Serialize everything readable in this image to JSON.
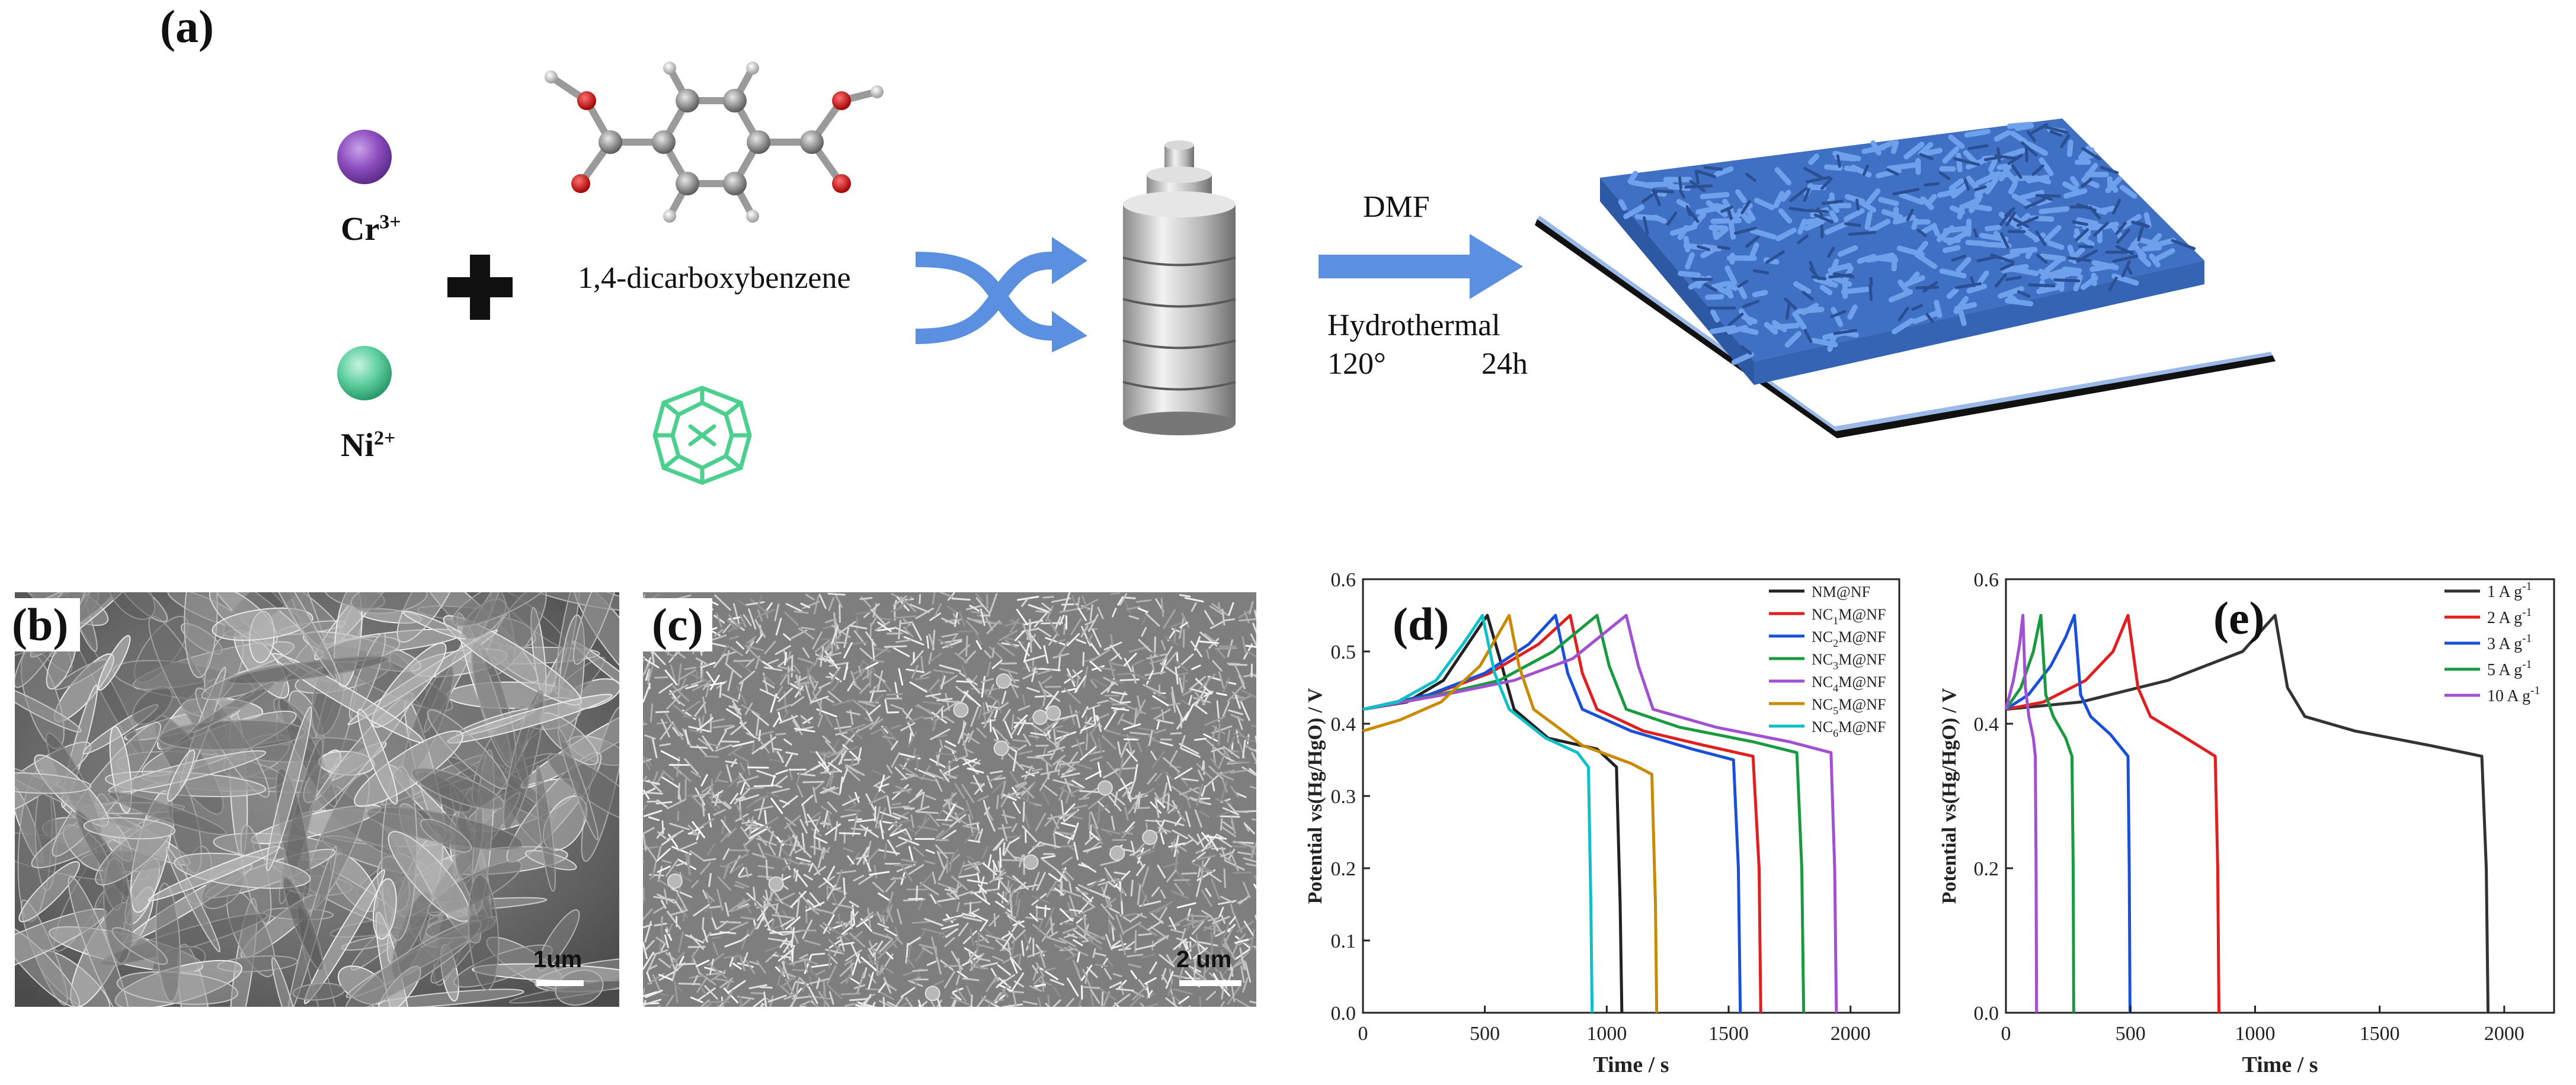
{
  "panel_a": {
    "label": "(a)",
    "cr_ion": "Cr",
    "cr_charge": "3+",
    "ni_ion": "Ni",
    "ni_charge": "2+",
    "molecule_name": "1,4-dicarboxybenzene",
    "solvent": "DMF",
    "method": "Hydrothermal",
    "temperature": "120°",
    "duration": "24h",
    "colors": {
      "cr": "#8e4fc0",
      "ni": "#5fd0a0",
      "arrow": "#5b8fe0",
      "mof": "#4a7fd0"
    }
  },
  "panel_b": {
    "label": "(b)",
    "scale": "1um"
  },
  "panel_c": {
    "label": "(c)",
    "scale": "2 um"
  },
  "chart_data": [
    {
      "panel": "(d)",
      "type": "line",
      "xlabel": "Time / s",
      "ylabel": "Potential vs(Hg/HgO) / V",
      "xlim": [
        0,
        2200
      ],
      "ylim": [
        0,
        0.6
      ],
      "xticks": [
        0,
        500,
        1000,
        1500,
        2000
      ],
      "yticks": [
        0.0,
        0.1,
        0.2,
        0.3,
        0.4,
        0.5,
        0.6
      ],
      "legend_position": "top-right",
      "series": [
        {
          "name": "NM@NF",
          "sub": "",
          "color": "#222222",
          "points": [
            [
              0,
              0.42
            ],
            [
              180,
              0.43
            ],
            [
              330,
              0.46
            ],
            [
              430,
              0.51
            ],
            [
              510,
              0.55
            ],
            [
              570,
              0.48
            ],
            [
              620,
              0.42
            ],
            [
              760,
              0.38
            ],
            [
              960,
              0.365
            ],
            [
              1040,
              0.34
            ],
            [
              1055,
              0.15
            ],
            [
              1062,
              0
            ]
          ]
        },
        {
          "name": "NC",
          "sub": "1",
          "name_rest": "M@NF",
          "color": "#e02020",
          "points": [
            [
              0,
              0.42
            ],
            [
              280,
              0.44
            ],
            [
              520,
              0.47
            ],
            [
              720,
              0.51
            ],
            [
              850,
              0.55
            ],
            [
              900,
              0.47
            ],
            [
              960,
              0.42
            ],
            [
              1150,
              0.39
            ],
            [
              1400,
              0.37
            ],
            [
              1600,
              0.355
            ],
            [
              1625,
              0.2
            ],
            [
              1632,
              0
            ]
          ]
        },
        {
          "name": "NC",
          "sub": "2",
          "name_rest": "M@NF",
          "color": "#1a50d8",
          "points": [
            [
              0,
              0.42
            ],
            [
              270,
              0.44
            ],
            [
              500,
              0.47
            ],
            [
              680,
              0.51
            ],
            [
              790,
              0.55
            ],
            [
              840,
              0.47
            ],
            [
              900,
              0.42
            ],
            [
              1100,
              0.39
            ],
            [
              1350,
              0.365
            ],
            [
              1520,
              0.35
            ],
            [
              1540,
              0.2
            ],
            [
              1548,
              0
            ]
          ]
        },
        {
          "name": "NC",
          "sub": "3",
          "name_rest": "M@NF",
          "color": "#1a9a40",
          "points": [
            [
              0,
              0.42
            ],
            [
              310,
              0.44
            ],
            [
              560,
              0.46
            ],
            [
              780,
              0.5
            ],
            [
              960,
              0.55
            ],
            [
              1010,
              0.48
            ],
            [
              1080,
              0.42
            ],
            [
              1300,
              0.395
            ],
            [
              1600,
              0.375
            ],
            [
              1780,
              0.36
            ],
            [
              1800,
              0.2
            ],
            [
              1808,
              0
            ]
          ]
        },
        {
          "name": "NC",
          "sub": "4",
          "name_rest": "M@NF",
          "color": "#a050d0",
          "points": [
            [
              0,
              0.42
            ],
            [
              330,
              0.44
            ],
            [
              620,
              0.46
            ],
            [
              860,
              0.49
            ],
            [
              1080,
              0.55
            ],
            [
              1130,
              0.48
            ],
            [
              1190,
              0.42
            ],
            [
              1450,
              0.395
            ],
            [
              1750,
              0.375
            ],
            [
              1920,
              0.36
            ],
            [
              1935,
              0.2
            ],
            [
              1942,
              0
            ]
          ]
        },
        {
          "name": "NC",
          "sub": "5",
          "name_rest": "M@NF",
          "color": "#c88a00",
          "points": [
            [
              0,
              0.39
            ],
            [
              150,
              0.405
            ],
            [
              320,
              0.43
            ],
            [
              480,
              0.48
            ],
            [
              600,
              0.55
            ],
            [
              640,
              0.48
            ],
            [
              700,
              0.42
            ],
            [
              900,
              0.37
            ],
            [
              1100,
              0.345
            ],
            [
              1185,
              0.33
            ],
            [
              1200,
              0.15
            ],
            [
              1205,
              0
            ]
          ]
        },
        {
          "name": "NC",
          "sub": "6",
          "name_rest": "M@NF",
          "color": "#10c0c8",
          "points": [
            [
              0,
              0.42
            ],
            [
              140,
              0.43
            ],
            [
              300,
              0.46
            ],
            [
              410,
              0.51
            ],
            [
              490,
              0.55
            ],
            [
              540,
              0.47
            ],
            [
              600,
              0.42
            ],
            [
              750,
              0.38
            ],
            [
              880,
              0.36
            ],
            [
              925,
              0.34
            ],
            [
              935,
              0.15
            ],
            [
              940,
              0
            ]
          ]
        }
      ]
    },
    {
      "panel": "(e)",
      "type": "line",
      "xlabel": "Time / s",
      "ylabel": "Potential vs(Hg/HgO) / V",
      "xlim": [
        0,
        2200
      ],
      "ylim": [
        0,
        0.6
      ],
      "xticks": [
        0,
        500,
        1000,
        1500,
        2000
      ],
      "yticks": [
        0.0,
        0.2,
        0.4,
        0.6
      ],
      "legend_position": "top-right",
      "series": [
        {
          "name": "1 A g",
          "sup": "-1",
          "color": "#333333",
          "points": [
            [
              0,
              0.42
            ],
            [
              300,
              0.43
            ],
            [
              650,
              0.46
            ],
            [
              950,
              0.5
            ],
            [
              1080,
              0.55
            ],
            [
              1130,
              0.45
            ],
            [
              1200,
              0.41
            ],
            [
              1400,
              0.39
            ],
            [
              1700,
              0.37
            ],
            [
              1910,
              0.355
            ],
            [
              1928,
              0.2
            ],
            [
              1935,
              0
            ]
          ]
        },
        {
          "name": "2 A g",
          "sup": "-1",
          "color": "#e02020",
          "points": [
            [
              0,
              0.42
            ],
            [
              150,
              0.43
            ],
            [
              320,
              0.46
            ],
            [
              430,
              0.5
            ],
            [
              490,
              0.55
            ],
            [
              530,
              0.45
            ],
            [
              580,
              0.41
            ],
            [
              700,
              0.385
            ],
            [
              840,
              0.355
            ],
            [
              850,
              0.2
            ],
            [
              855,
              0
            ]
          ]
        },
        {
          "name": "3 A g",
          "sup": "-1",
          "color": "#1a50d8",
          "points": [
            [
              0,
              0.42
            ],
            [
              90,
              0.44
            ],
            [
              180,
              0.48
            ],
            [
              240,
              0.52
            ],
            [
              275,
              0.55
            ],
            [
              300,
              0.44
            ],
            [
              340,
              0.41
            ],
            [
              420,
              0.385
            ],
            [
              490,
              0.355
            ],
            [
              495,
              0.2
            ],
            [
              498,
              0
            ]
          ]
        },
        {
          "name": "5 A g",
          "sup": "-1",
          "color": "#1a9a40",
          "points": [
            [
              0,
              0.42
            ],
            [
              60,
              0.45
            ],
            [
              110,
              0.5
            ],
            [
              140,
              0.55
            ],
            [
              160,
              0.44
            ],
            [
              190,
              0.41
            ],
            [
              240,
              0.38
            ],
            [
              265,
              0.355
            ],
            [
              270,
              0.2
            ],
            [
              272,
              0
            ]
          ]
        },
        {
          "name": "10 A g",
          "sup": "-1",
          "color": "#a050d0",
          "points": [
            [
              0,
              0.42
            ],
            [
              30,
              0.46
            ],
            [
              55,
              0.51
            ],
            [
              68,
              0.55
            ],
            [
              78,
              0.45
            ],
            [
              92,
              0.41
            ],
            [
              110,
              0.38
            ],
            [
              118,
              0.355
            ],
            [
              121,
              0.2
            ],
            [
              123,
              0
            ]
          ]
        }
      ]
    }
  ]
}
